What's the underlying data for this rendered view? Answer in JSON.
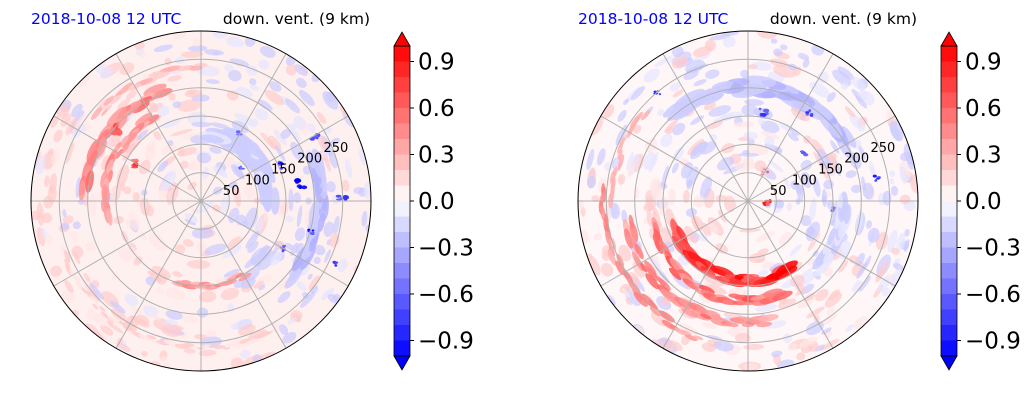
{
  "colors": {
    "positive": "#ff0000",
    "negative": "#0000ff",
    "title_left": "#0000ff",
    "title_right": "#000000",
    "grid": "#b0b0b0"
  },
  "chart_data": [
    {
      "type": "heatmap",
      "projection": "polar",
      "title_left": "2018-10-08 12 UTC",
      "title_right": "down. vent. (9 km)",
      "radial_ticks": [
        "50",
        "100",
        "150",
        "200",
        "250"
      ],
      "radial_tick_values": [
        50,
        100,
        150,
        200,
        250
      ],
      "r_max": 300,
      "grid": true,
      "spoke_angles_deg": [
        0,
        30,
        60,
        90,
        120,
        150,
        180,
        210,
        240,
        270,
        300,
        330
      ],
      "colorbar": {
        "ticks": [
          "0.9",
          "0.6",
          "0.3",
          "0.0",
          "−0.3",
          "−0.6",
          "−0.9"
        ],
        "tick_values": [
          0.9,
          0.6,
          0.3,
          0.0,
          -0.3,
          -0.6,
          -0.9
        ],
        "range": [
          -1.0,
          1.0
        ],
        "extend": "both",
        "cmap": "bwr"
      },
      "features": [
        {
          "kind": "band",
          "sign": 1,
          "r": 205,
          "a0": 110,
          "a1": 175,
          "width": 22,
          "value": 0.6
        },
        {
          "kind": "band",
          "sign": 1,
          "r": 170,
          "a0": 120,
          "a1": 190,
          "width": 18,
          "value": 0.5
        },
        {
          "kind": "band",
          "sign": 1,
          "r": 235,
          "a0": 90,
          "a1": 140,
          "width": 14,
          "value": 0.35
        },
        {
          "kind": "band",
          "sign": 1,
          "r": 150,
          "a0": 255,
          "a1": 300,
          "width": 14,
          "value": 0.5
        },
        {
          "kind": "band",
          "sign": 1,
          "r": 260,
          "a0": 200,
          "a1": 300,
          "width": 12,
          "value": 0.2
        },
        {
          "kind": "band",
          "sign": -1,
          "r": 120,
          "a0": 0,
          "a1": 80,
          "width": 30,
          "value": 0.25
        },
        {
          "kind": "band",
          "sign": -1,
          "r": 210,
          "a0": 320,
          "a1": 380,
          "width": 26,
          "value": 0.3
        },
        {
          "kind": "spot",
          "sign": -1,
          "r": 180,
          "a": 10,
          "rad": 10,
          "value": 1.0
        },
        {
          "kind": "spot",
          "sign": -1,
          "r": 150,
          "a": 25,
          "rad": 8,
          "value": 1.0
        },
        {
          "kind": "spot",
          "sign": -1,
          "r": 250,
          "a": 2,
          "rad": 9,
          "value": 0.9
        },
        {
          "kind": "spot",
          "sign": -1,
          "r": 200,
          "a": -15,
          "rad": 7,
          "value": 1.0
        },
        {
          "kind": "spot",
          "sign": -1,
          "r": 90,
          "a": 40,
          "rad": 6,
          "value": 0.8
        },
        {
          "kind": "spot",
          "sign": -1,
          "r": 230,
          "a": 30,
          "rad": 8,
          "value": 0.8
        },
        {
          "kind": "spot",
          "sign": -1,
          "r": 170,
          "a": -30,
          "rad": 7,
          "value": 0.8
        },
        {
          "kind": "spot",
          "sign": -1,
          "r": 260,
          "a": -25,
          "rad": 6,
          "value": 0.9
        },
        {
          "kind": "spot",
          "sign": -1,
          "r": 140,
          "a": 60,
          "rad": 6,
          "value": 0.6
        },
        {
          "kind": "spot",
          "sign": 1,
          "r": 130,
          "a": 150,
          "rad": 10,
          "value": 0.9
        },
        {
          "kind": "spot",
          "sign": 1,
          "r": 200,
          "a": 140,
          "rad": 12,
          "value": 0.8
        }
      ]
    },
    {
      "type": "heatmap",
      "projection": "polar",
      "title_left": "2018-10-08 12 UTC",
      "title_right": "down. vent. (9 km)",
      "radial_ticks": [
        "50",
        "100",
        "150",
        "200",
        "250"
      ],
      "radial_tick_values": [
        50,
        100,
        150,
        200,
        250
      ],
      "r_max": 300,
      "grid": true,
      "spoke_angles_deg": [
        0,
        30,
        60,
        90,
        120,
        150,
        180,
        210,
        240,
        270,
        300,
        330
      ],
      "colorbar": {
        "ticks": [
          "0.9",
          "0.6",
          "0.3",
          "0.0",
          "−0.3",
          "−0.6",
          "−0.9"
        ],
        "tick_values": [
          0.9,
          0.6,
          0.3,
          0.0,
          -0.3,
          -0.6,
          -0.9
        ],
        "range": [
          -1.0,
          1.0
        ],
        "extend": "both",
        "cmap": "bwr"
      },
      "features": [
        {
          "kind": "band",
          "sign": 1,
          "r": 140,
          "a0": 200,
          "a1": 300,
          "width": 22,
          "value": 1.0
        },
        {
          "kind": "band",
          "sign": 1,
          "r": 175,
          "a0": 195,
          "a1": 290,
          "width": 18,
          "value": 0.7
        },
        {
          "kind": "band",
          "sign": 1,
          "r": 215,
          "a0": 190,
          "a1": 280,
          "width": 18,
          "value": 0.6
        },
        {
          "kind": "band",
          "sign": 1,
          "r": 255,
          "a0": 175,
          "a1": 250,
          "width": 16,
          "value": 0.55
        },
        {
          "kind": "band",
          "sign": 1,
          "r": 240,
          "a0": 140,
          "a1": 180,
          "width": 14,
          "value": 0.35
        },
        {
          "kind": "band",
          "sign": -1,
          "r": 200,
          "a0": 30,
          "a1": 130,
          "width": 30,
          "value": 0.3
        },
        {
          "kind": "band",
          "sign": -1,
          "r": 170,
          "a0": 320,
          "a1": 360,
          "width": 24,
          "value": 0.2
        },
        {
          "kind": "spot",
          "sign": -1,
          "r": 160,
          "a": 80,
          "rad": 8,
          "value": 1.0
        },
        {
          "kind": "spot",
          "sign": -1,
          "r": 130,
          "a": 40,
          "rad": 7,
          "value": 0.9
        },
        {
          "kind": "spot",
          "sign": -1,
          "r": 190,
          "a": 55,
          "rad": 6,
          "value": 0.9
        },
        {
          "kind": "spot",
          "sign": -1,
          "r": 230,
          "a": 10,
          "rad": 6,
          "value": 0.9
        },
        {
          "kind": "spot",
          "sign": -1,
          "r": 150,
          "a": -5,
          "rad": 6,
          "value": 0.7
        },
        {
          "kind": "spot",
          "sign": -1,
          "r": 250,
          "a": 130,
          "rad": 7,
          "value": 0.9
        },
        {
          "kind": "spot",
          "sign": 1,
          "r": 35,
          "a": 0,
          "rad": 8,
          "value": 1.0
        },
        {
          "kind": "spot",
          "sign": 1,
          "r": 60,
          "a": 60,
          "rad": 6,
          "value": 0.6
        }
      ]
    }
  ]
}
